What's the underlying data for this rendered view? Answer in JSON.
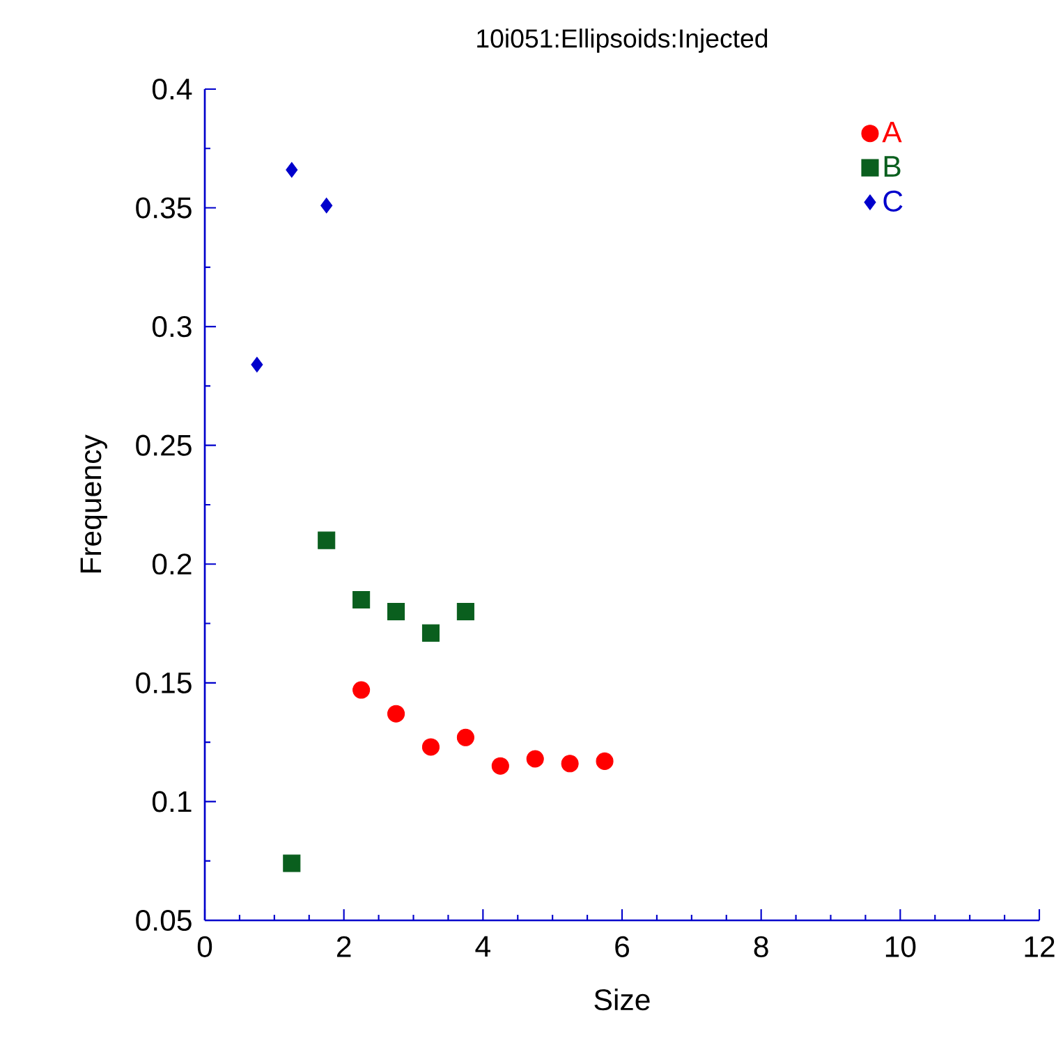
{
  "chart_data": {
    "type": "scatter",
    "title": "10i051:Ellipsoids:Injected",
    "xlabel": "Size",
    "ylabel": "Frequency",
    "xlim": [
      0,
      12
    ],
    "xticks": [
      0,
      2,
      4,
      6,
      8,
      10,
      12
    ],
    "ylim": [
      0.05,
      0.4
    ],
    "yticks": [
      0.05,
      0.1,
      0.15,
      0.2,
      0.25,
      0.3,
      0.35,
      0.4
    ],
    "grid": false,
    "legend": "top right",
    "series": [
      {
        "name": "A",
        "color": "#ff0000",
        "marker": "circle",
        "x": [
          2.25,
          2.75,
          3.25,
          3.75,
          4.25,
          4.75,
          5.25,
          5.75
        ],
        "values": [
          0.147,
          0.137,
          0.123,
          0.127,
          0.115,
          0.118,
          0.116,
          0.117
        ]
      },
      {
        "name": "B",
        "color": "#0a5f1e",
        "marker": "square",
        "x": [
          1.25,
          1.75,
          2.25,
          2.75,
          3.25,
          3.75
        ],
        "values": [
          0.074,
          0.21,
          0.185,
          0.18,
          0.171,
          0.18
        ]
      },
      {
        "name": "C",
        "color": "#0000cc",
        "marker": "diamond",
        "x": [
          0.75,
          1.25,
          1.75
        ],
        "values": [
          0.284,
          0.366,
          0.351
        ]
      }
    ]
  }
}
